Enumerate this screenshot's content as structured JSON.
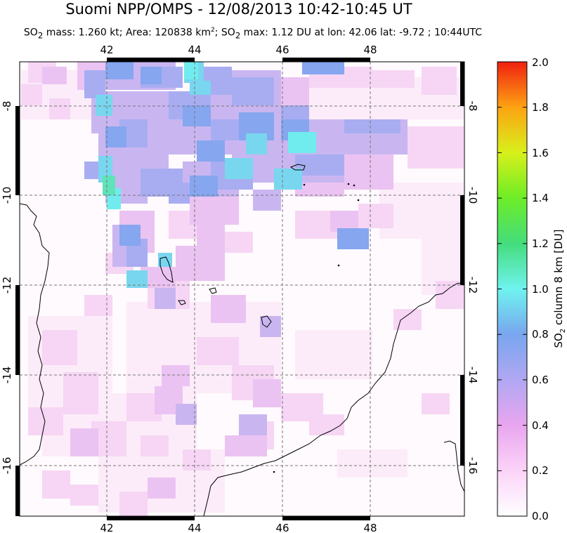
{
  "header": {
    "title": "Suomi NPP/OMPS - 12/08/2013 10:42-10:45 UT",
    "subtitle_parts": [
      "SO",
      "2",
      " mass: 1.260 kt; Area: 120838 km",
      "2",
      "; SO",
      "2",
      " max: 1.12 DU at lon: 42.06 lat: -9.72 ; 10:44UTC"
    ]
  },
  "map": {
    "lon_range": [
      40.0,
      50.0
    ],
    "lat_range": [
      -17.5,
      -7.0
    ],
    "lon_ticks": [
      "42",
      "44",
      "46",
      "48"
    ],
    "lat_ticks": [
      "-8",
      "-10",
      "-12",
      "-14",
      "-16"
    ],
    "grid": "dashed"
  },
  "colorbar": {
    "title_parts": [
      "SO",
      "2",
      " column 8 km [DU]"
    ],
    "ticks": [
      "0.0",
      "0.2",
      "0.4",
      "0.6",
      "0.8",
      "1.0",
      "1.2",
      "1.4",
      "1.6",
      "1.8",
      "2.0"
    ],
    "range": [
      0.0,
      2.0
    ],
    "colors": [
      "#ffffff",
      "#fbd3f8",
      "#e9a6ef",
      "#b1a7f2",
      "#79a6ef",
      "#6ff3ef",
      "#44dd7d",
      "#6ded27",
      "#d8f01b",
      "#fda312",
      "#f02010"
    ]
  }
}
